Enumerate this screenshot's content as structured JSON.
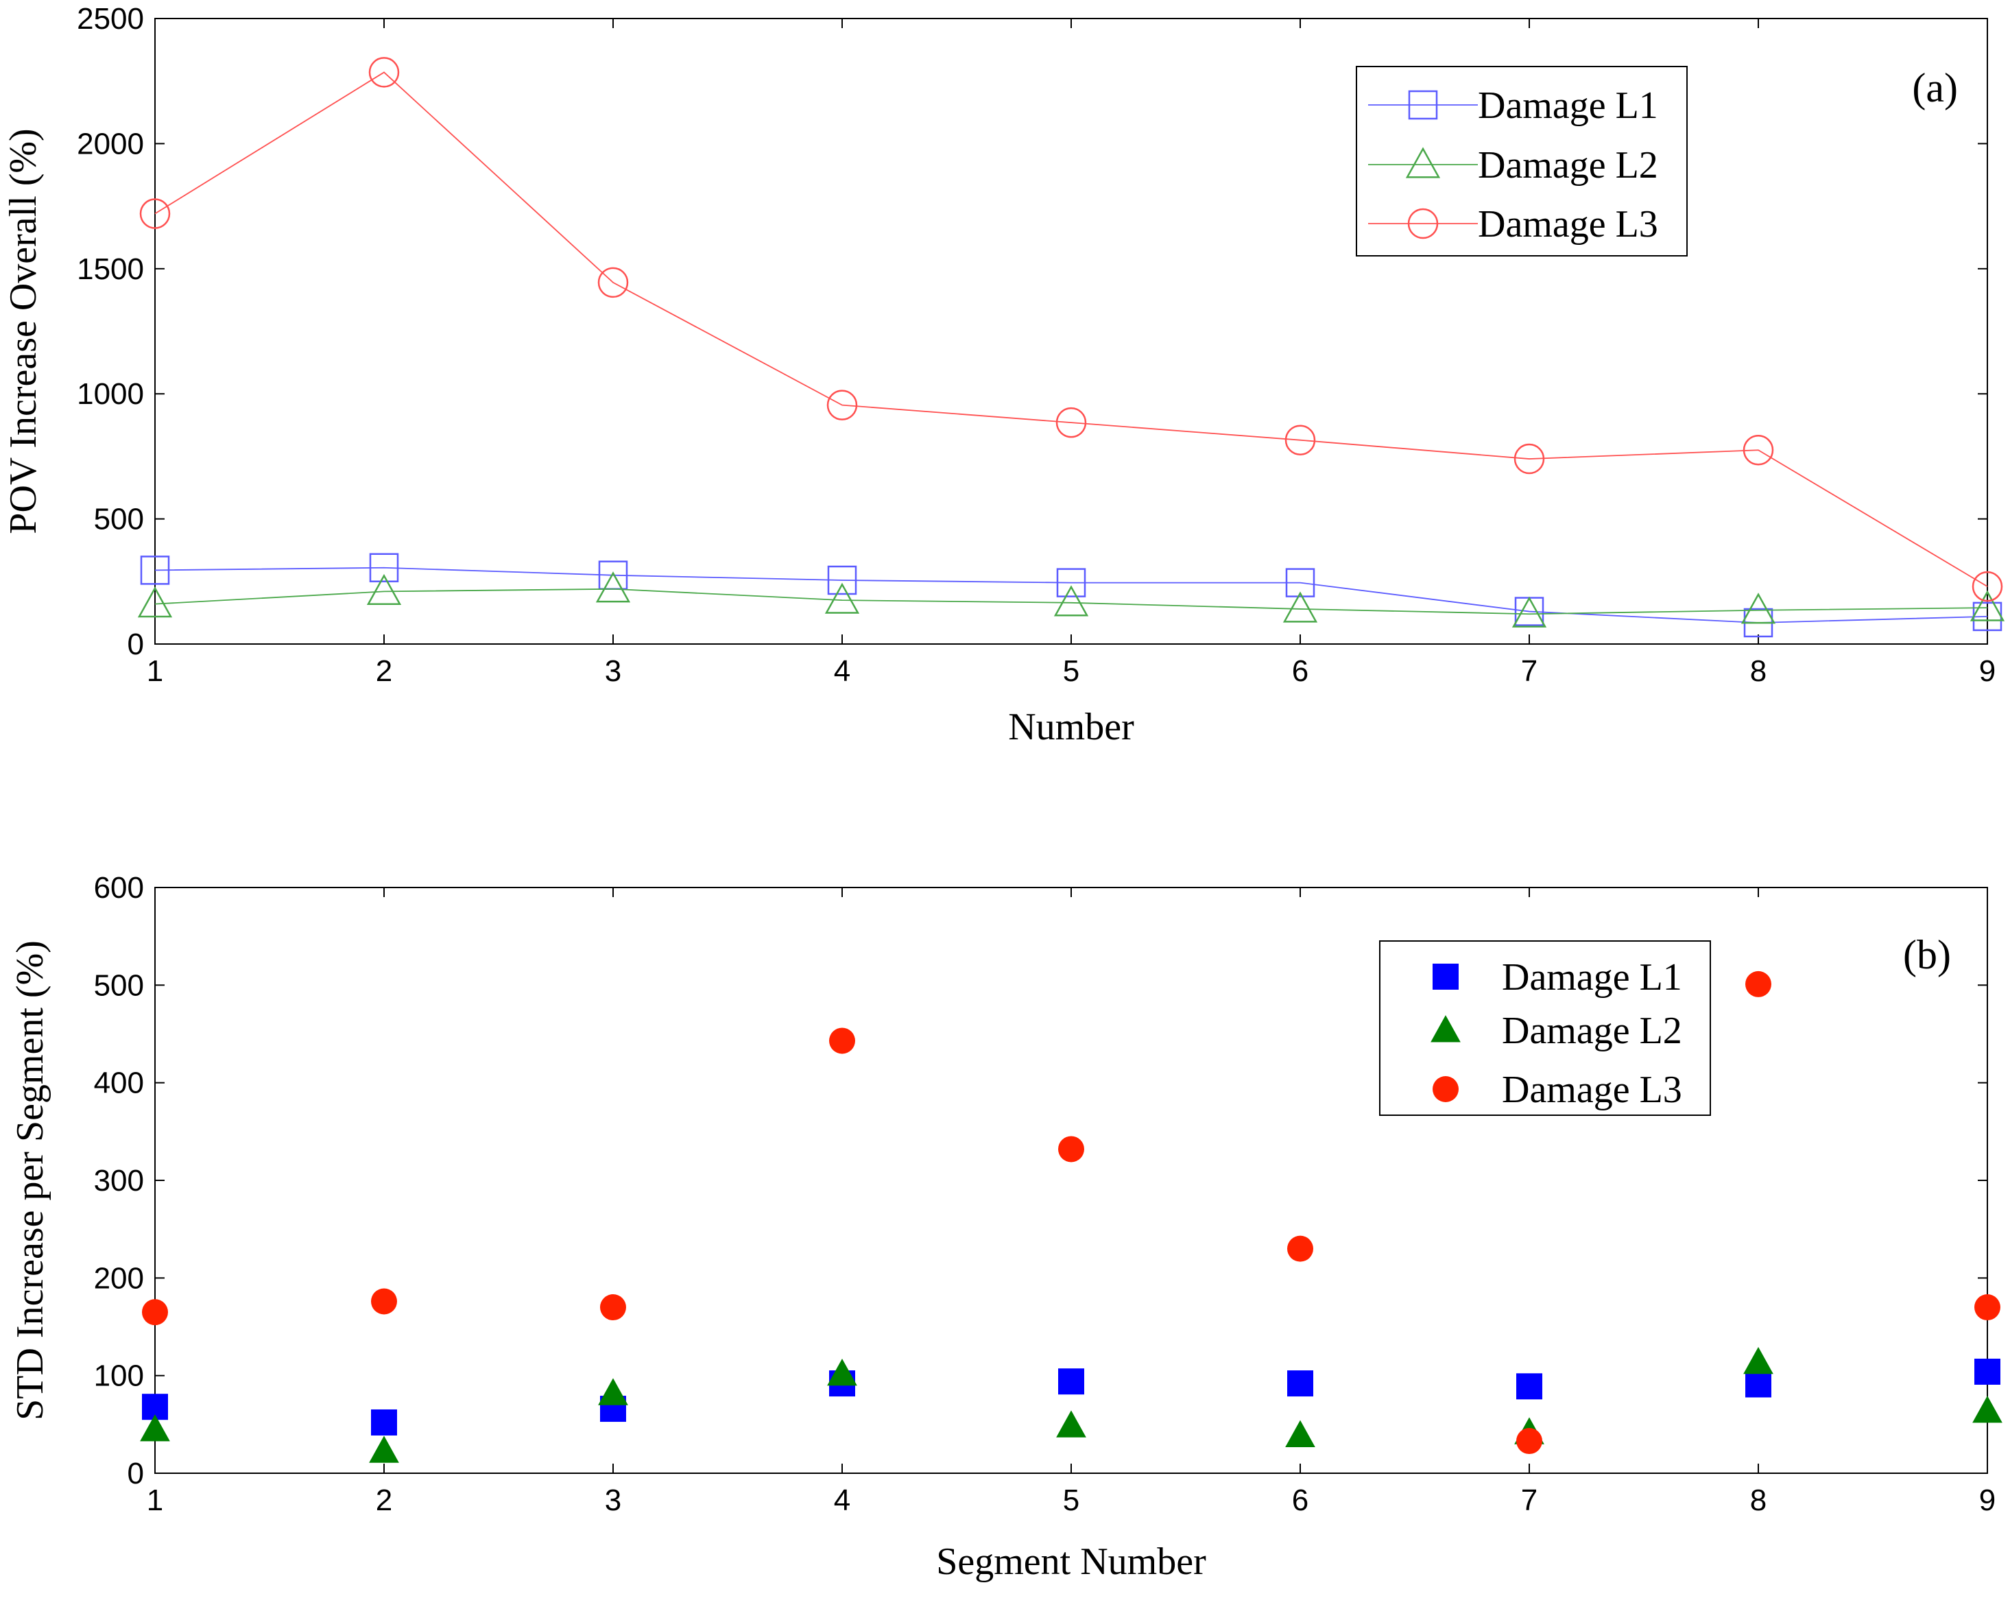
{
  "chart_data": [
    {
      "type": "line",
      "panel_label": "(a)",
      "title": "",
      "xlabel": "Number",
      "ylabel": "POV Increase Overall (%)",
      "xlim": [
        1,
        9
      ],
      "ylim": [
        0,
        2500
      ],
      "xticks": [
        1,
        2,
        3,
        4,
        5,
        6,
        7,
        8,
        9
      ],
      "yticks": [
        0,
        500,
        1000,
        1500,
        2000,
        2500
      ],
      "x": [
        1,
        2,
        3,
        4,
        5,
        6,
        7,
        8,
        9
      ],
      "legend_position": "top-right",
      "series": [
        {
          "name": "Damage L1",
          "marker": "square-open",
          "color": "#5b5bff",
          "values": [
            295,
            305,
            275,
            255,
            245,
            245,
            130,
            85,
            110
          ]
        },
        {
          "name": "Damage L2",
          "marker": "triangle-open",
          "color": "#4aa84a",
          "values": [
            160,
            210,
            220,
            175,
            165,
            140,
            120,
            135,
            145
          ]
        },
        {
          "name": "Damage L3",
          "marker": "circle-open",
          "color": "#ff5050",
          "values": [
            1720,
            2285,
            1445,
            955,
            885,
            815,
            740,
            775,
            230
          ]
        }
      ]
    },
    {
      "type": "scatter",
      "panel_label": "(b)",
      "title": "",
      "xlabel": "Segment Number",
      "ylabel": "STD Increase per Segment (%)",
      "xlim": [
        1,
        9
      ],
      "ylim": [
        0,
        600
      ],
      "xticks": [
        1,
        2,
        3,
        4,
        5,
        6,
        7,
        8,
        9
      ],
      "yticks": [
        0,
        100,
        200,
        300,
        400,
        500,
        600
      ],
      "x": [
        1,
        2,
        3,
        4,
        5,
        6,
        7,
        8,
        9
      ],
      "legend_position": "top-right",
      "series": [
        {
          "name": "Damage L1",
          "marker": "square-filled",
          "color": "#0000ff",
          "values": [
            68,
            52,
            66,
            92,
            94,
            92,
            89,
            91,
            104
          ]
        },
        {
          "name": "Damage L2",
          "marker": "triangle-filled",
          "color": "#008000",
          "values": [
            45,
            23,
            82,
            102,
            49,
            39,
            42,
            114,
            64
          ]
        },
        {
          "name": "Damage L3",
          "marker": "circle-filled",
          "color": "#ff2200",
          "values": [
            165,
            176,
            170,
            443,
            332,
            230,
            33,
            501,
            170
          ]
        }
      ]
    }
  ]
}
